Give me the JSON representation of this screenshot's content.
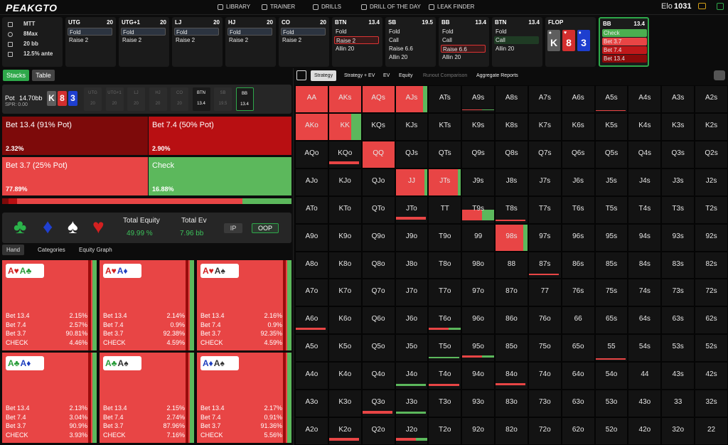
{
  "nav": {
    "brand": "PEAKGTO",
    "items": [
      "LIBRARY",
      "TRAINER",
      "DRILLS",
      "DRILL OF THE DAY",
      "LEAK FINDER"
    ],
    "elo_label": "Elo",
    "elo_value": "1031"
  },
  "game_info": [
    "MTT",
    "8Max",
    "20 bb",
    "12.5% ante"
  ],
  "action_columns": [
    {
      "position": "UTG",
      "stack": 20,
      "actions": [
        "Fold",
        "Raise 2"
      ],
      "selected": 0,
      "selected_style": "neutral"
    },
    {
      "position": "UTG+1",
      "stack": 20,
      "actions": [
        "Fold",
        "Raise 2"
      ],
      "selected": 0,
      "selected_style": "neutral"
    },
    {
      "position": "LJ",
      "stack": 20,
      "actions": [
        "Fold",
        "Raise 2"
      ],
      "selected": 0,
      "selected_style": "neutral"
    },
    {
      "position": "HJ",
      "stack": 20,
      "actions": [
        "Fold",
        "Raise 2"
      ],
      "selected": 0,
      "selected_style": "neutral"
    },
    {
      "position": "CO",
      "stack": 20,
      "actions": [
        "Fold",
        "Raise 2"
      ],
      "selected": 0,
      "selected_style": "neutral"
    },
    {
      "position": "BTN",
      "stack": 13.4,
      "actions": [
        "Fold",
        "Raise 2",
        "Allin 20"
      ],
      "selected": 1,
      "selected_style": "red"
    },
    {
      "position": "SB",
      "stack": 19.5,
      "actions": [
        "Fold",
        "Call",
        "Raise 6.6",
        "Allin 20"
      ]
    },
    {
      "position": "BB",
      "stack": 13.4,
      "actions": [
        "Fold",
        "Call",
        "Raise 6.6",
        "Allin 20"
      ],
      "selected": 2,
      "selected_style": "red"
    },
    {
      "position": "BTN",
      "stack": 13.4,
      "actions": [
        "Fold",
        "Call",
        "Allin 20"
      ],
      "selected": 1,
      "selected_style": "green"
    },
    {
      "position": "FLOP",
      "board": [
        {
          "rank": "K",
          "suit": "♠",
          "color": "#5e5e5e"
        },
        {
          "rank": "8",
          "suit": "♥",
          "color": "#d32f2f"
        },
        {
          "rank": "3",
          "suit": "♦",
          "color": "#1e3fcf"
        }
      ]
    },
    {
      "position": "BB",
      "stack": 13.4,
      "actions": [
        "Check",
        "Bet 3.7",
        "Bet 7.4",
        "Bet 13.4"
      ],
      "action_colors": [
        "#4caf50",
        "#e84545",
        "#c0181a",
        "#8b0a0a"
      ]
    }
  ],
  "left_tabs": [
    "Stacks",
    "Table"
  ],
  "pot": {
    "label": "Pot",
    "value": "14.70bb",
    "spr": "SPR: 0.00",
    "board": [
      {
        "rank": "K",
        "color": "#5e5e5e"
      },
      {
        "rank": "8",
        "color": "#d32f2f"
      },
      {
        "rank": "3",
        "color": "#1e3fcf"
      }
    ],
    "seats": [
      {
        "name": "UTG",
        "stack": 20
      },
      {
        "name": "UTG+1",
        "stack": 20
      },
      {
        "name": "LJ",
        "stack": 20
      },
      {
        "name": "HJ",
        "stack": 20
      },
      {
        "name": "CO",
        "stack": 20
      },
      {
        "name": "BTN",
        "stack": 13.4,
        "style": "bright"
      },
      {
        "name": "SB",
        "stack": 19.5
      },
      {
        "name": "BB",
        "stack": 13.4,
        "style": "current"
      }
    ]
  },
  "strategy": [
    {
      "label": "Bet 13.4 (91% Pot)",
      "freq": 2.32,
      "freq_label": "2.32%",
      "color": "#7d0a0a"
    },
    {
      "label": "Bet 7.4 (50% Pot)",
      "freq": 2.9,
      "freq_label": "2.90%",
      "color": "#b80f12"
    },
    {
      "label": "Bet 3.7 (25% Pot)",
      "freq": 77.89,
      "freq_label": "77.89%",
      "color": "#e84545"
    },
    {
      "label": "Check",
      "freq": 16.88,
      "freq_label": "16.88%",
      "color": "#5cb85c"
    }
  ],
  "equity": {
    "suits": [
      {
        "symbol": "♣",
        "color": "#2bb34a"
      },
      {
        "symbol": "♦",
        "color": "#2040d0"
      },
      {
        "symbol": "♠",
        "color": "#ffffff"
      },
      {
        "symbol": "♥",
        "color": "#d32020"
      }
    ],
    "equity_label": "Total Equity",
    "equity_value": "49.99 %",
    "ev_label": "Total Ev",
    "ev_value": "7.96 bb",
    "buttons": [
      "IP",
      "OOP"
    ]
  },
  "hand_tabs": [
    "Hand",
    "Categories",
    "Equity Graph"
  ],
  "hands": [
    {
      "cards": [
        {
          "text": "A♥",
          "color": "#d01f1f"
        },
        {
          "text": "A♣",
          "color": "#2a9d3a"
        }
      ],
      "rows": [
        {
          "label": "Bet 13.4",
          "value": "2.15%"
        },
        {
          "label": "Bet 7.4",
          "value": "2.57%"
        },
        {
          "label": "Bet 3.7",
          "value": "90.81%"
        },
        {
          "label": "CHECK",
          "value": "4.46%"
        }
      ]
    },
    {
      "cards": [
        {
          "text": "A♥",
          "color": "#d01f1f"
        },
        {
          "text": "A♦",
          "color": "#1f3fbf"
        }
      ],
      "rows": [
        {
          "label": "Bet 13.4",
          "value": "2.14%"
        },
        {
          "label": "Bet 7.4",
          "value": "0.9%"
        },
        {
          "label": "Bet 3.7",
          "value": "92.38%"
        },
        {
          "label": "CHECK",
          "value": "4.59%"
        }
      ]
    },
    {
      "cards": [
        {
          "text": "A♥",
          "color": "#d01f1f"
        },
        {
          "text": "A♠",
          "color": "#333333"
        }
      ],
      "rows": [
        {
          "label": "Bet 13.4",
          "value": "2.16%"
        },
        {
          "label": "Bet 7.4",
          "value": "0.9%"
        },
        {
          "label": "Bet 3.7",
          "value": "92.35%"
        },
        {
          "label": "CHECK",
          "value": "4.59%"
        }
      ]
    },
    {
      "cards": [
        {
          "text": "A♣",
          "color": "#2a9d3a"
        },
        {
          "text": "A♦",
          "color": "#1f3fbf"
        }
      ],
      "rows": [
        {
          "label": "Bet 13.4",
          "value": "2.13%"
        },
        {
          "label": "Bet 7.4",
          "value": "3.04%"
        },
        {
          "label": "Bet 3.7",
          "value": "90.9%"
        },
        {
          "label": "CHECK",
          "value": "3.93%"
        }
      ]
    },
    {
      "cards": [
        {
          "text": "A♣",
          "color": "#2a9d3a"
        },
        {
          "text": "A♠",
          "color": "#333333"
        }
      ],
      "rows": [
        {
          "label": "Bet 13.4",
          "value": "2.15%"
        },
        {
          "label": "Bet 7.4",
          "value": "2.74%"
        },
        {
          "label": "Bet 3.7",
          "value": "87.96%"
        },
        {
          "label": "CHECK",
          "value": "7.16%"
        }
      ]
    },
    {
      "cards": [
        {
          "text": "A♦",
          "color": "#1f3fbf"
        },
        {
          "text": "A♠",
          "color": "#333333"
        }
      ],
      "rows": [
        {
          "label": "Bet 13.4",
          "value": "2.17%"
        },
        {
          "label": "Bet 7.4",
          "value": "0.91%"
        },
        {
          "label": "Bet 3.7",
          "value": "91.36%"
        },
        {
          "label": "CHECK",
          "value": "5.56%"
        }
      ]
    }
  ],
  "grid_tabs": [
    "Strategy",
    "Strategy + EV",
    "EV",
    "Equity",
    "Runout Comparison",
    "Aggregate Reports"
  ],
  "grid": [
    [
      "AA",
      "AKs",
      "AQs",
      "AJs",
      "ATs",
      "A9s",
      "A8s",
      "A7s",
      "A6s",
      "A5s",
      "A4s",
      "A3s",
      "A2s"
    ],
    [
      "AKo",
      "KK",
      "KQs",
      "KJs",
      "KTs",
      "K9s",
      "K8s",
      "K7s",
      "K6s",
      "K5s",
      "K4s",
      "K3s",
      "K2s"
    ],
    [
      "AQo",
      "KQo",
      "QQ",
      "QJs",
      "QTs",
      "Q9s",
      "Q8s",
      "Q7s",
      "Q6s",
      "Q5s",
      "Q4s",
      "Q3s",
      "Q2s"
    ],
    [
      "AJo",
      "KJo",
      "QJo",
      "JJ",
      "JTs",
      "J9s",
      "J8s",
      "J7s",
      "J6s",
      "J5s",
      "J4s",
      "J3s",
      "J2s"
    ],
    [
      "ATo",
      "KTo",
      "QTo",
      "JTo",
      "TT",
      "T9s",
      "T8s",
      "T7s",
      "T6s",
      "T5s",
      "T4s",
      "T3s",
      "T2s"
    ],
    [
      "A9o",
      "K9o",
      "Q9o",
      "J9o",
      "T9o",
      "99",
      "98s",
      "97s",
      "96s",
      "95s",
      "94s",
      "93s",
      "92s"
    ],
    [
      "A8o",
      "K8o",
      "Q8o",
      "J8o",
      "T8o",
      "98o",
      "88",
      "87s",
      "86s",
      "85s",
      "84s",
      "83s",
      "82s"
    ],
    [
      "A7o",
      "K7o",
      "Q7o",
      "J7o",
      "T7o",
      "97o",
      "87o",
      "77",
      "76s",
      "75s",
      "74s",
      "73s",
      "72s"
    ],
    [
      "A6o",
      "K6o",
      "Q6o",
      "J6o",
      "T6o",
      "96o",
      "86o",
      "76o",
      "66",
      "65s",
      "64s",
      "63s",
      "62s"
    ],
    [
      "A5o",
      "K5o",
      "Q5o",
      "J5o",
      "T5o",
      "95o",
      "85o",
      "75o",
      "65o",
      "55",
      "54s",
      "53s",
      "52s"
    ],
    [
      "A4o",
      "K4o",
      "Q4o",
      "J4o",
      "T4o",
      "94o",
      "84o",
      "74o",
      "64o",
      "54o",
      "44",
      "43s",
      "42s"
    ],
    [
      "A3o",
      "K3o",
      "Q3o",
      "J3o",
      "T3o",
      "93o",
      "83o",
      "73o",
      "63o",
      "53o",
      "43o",
      "33",
      "32s"
    ],
    [
      "A2o",
      "K2o",
      "Q2o",
      "J2o",
      "T2o",
      "92o",
      "82o",
      "72o",
      "62o",
      "52o",
      "42o",
      "32o",
      "22"
    ]
  ]
}
